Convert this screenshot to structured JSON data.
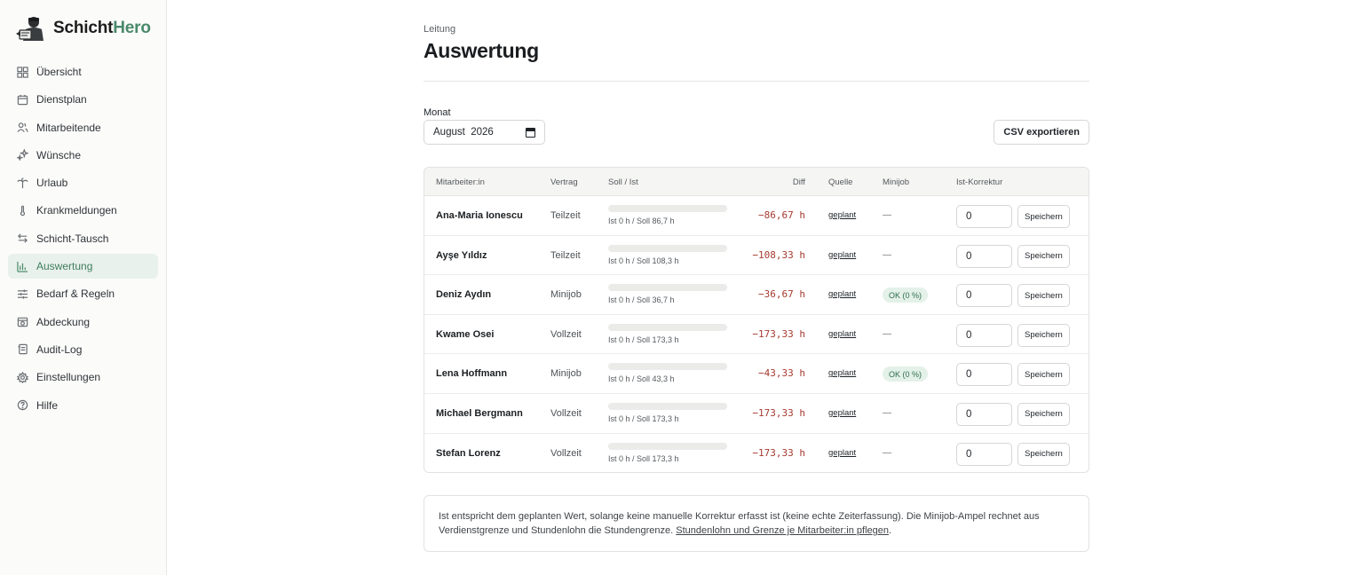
{
  "brand": {
    "name_main": "Schicht",
    "name_accent": "Hero",
    "accent_color": "#4a8a6a"
  },
  "sidebar": {
    "items": [
      {
        "label": "Übersicht",
        "icon": "grid-icon",
        "active": false
      },
      {
        "label": "Dienstplan",
        "icon": "calendar-icon",
        "active": false
      },
      {
        "label": "Mitarbeitende",
        "icon": "users-icon",
        "active": false
      },
      {
        "label": "Wünsche",
        "icon": "sparkle-icon",
        "active": false
      },
      {
        "label": "Urlaub",
        "icon": "palm-tree-icon",
        "active": false
      },
      {
        "label": "Krankmeldungen",
        "icon": "thermometer-icon",
        "active": false
      },
      {
        "label": "Schicht-Tausch",
        "icon": "swap-icon",
        "active": false
      },
      {
        "label": "Auswertung",
        "icon": "bar-chart-icon",
        "active": true
      },
      {
        "label": "Bedarf & Regeln",
        "icon": "sliders-icon",
        "active": false
      },
      {
        "label": "Abdeckung",
        "icon": "calendar-check-icon",
        "active": false
      },
      {
        "label": "Audit-Log",
        "icon": "log-icon",
        "active": false
      },
      {
        "label": "Einstellungen",
        "icon": "gear-icon",
        "active": false
      },
      {
        "label": "Hilfe",
        "icon": "help-icon",
        "active": false
      }
    ]
  },
  "header": {
    "breadcrumb": "Leitung",
    "title": "Auswertung"
  },
  "filters": {
    "month_label": "Monat",
    "month_value": "August  2026",
    "export_label": "CSV exportieren"
  },
  "table": {
    "columns": [
      "Mitarbeiter:in",
      "Vertrag",
      "Soll / Ist",
      "Diff",
      "Quelle",
      "Minijob",
      "Ist-Korrektur"
    ],
    "save_label": "Speichern",
    "rows": [
      {
        "name": "Ana-Maria Ionescu",
        "contract": "Teilzeit",
        "soll_ist": "Ist 0 h / Soll 86,7 h",
        "progress": 0,
        "diff": "−86,67 h",
        "source": "geplant",
        "minijob": "—",
        "correction": "0"
      },
      {
        "name": "Ayşe Yıldız",
        "contract": "Teilzeit",
        "soll_ist": "Ist 0 h / Soll 108,3 h",
        "progress": 0,
        "diff": "−108,33 h",
        "source": "geplant",
        "minijob": "—",
        "correction": "0"
      },
      {
        "name": "Deniz Aydın",
        "contract": "Minijob",
        "soll_ist": "Ist 0 h / Soll 36,7 h",
        "progress": 0,
        "diff": "−36,67 h",
        "source": "geplant",
        "minijob": "OK (0 %)",
        "correction": "0"
      },
      {
        "name": "Kwame Osei",
        "contract": "Vollzeit",
        "soll_ist": "Ist 0 h / Soll 173,3 h",
        "progress": 0,
        "diff": "−173,33 h",
        "source": "geplant",
        "minijob": "—",
        "correction": "0"
      },
      {
        "name": "Lena Hoffmann",
        "contract": "Minijob",
        "soll_ist": "Ist 0 h / Soll 43,3 h",
        "progress": 0,
        "diff": "−43,33 h",
        "source": "geplant",
        "minijob": "OK (0 %)",
        "correction": "0"
      },
      {
        "name": "Michael Bergmann",
        "contract": "Vollzeit",
        "soll_ist": "Ist 0 h / Soll 173,3 h",
        "progress": 0,
        "diff": "−173,33 h",
        "source": "geplant",
        "minijob": "—",
        "correction": "0"
      },
      {
        "name": "Stefan Lorenz",
        "contract": "Vollzeit",
        "soll_ist": "Ist 0 h / Soll 173,3 h",
        "progress": 0,
        "diff": "−173,33 h",
        "source": "geplant",
        "minijob": "—",
        "correction": "0"
      }
    ]
  },
  "note": {
    "text": "Ist entspricht dem geplanten Wert, solange keine manuelle Korrektur erfasst ist (keine echte Zeiterfassung). Die Minijob-Ampel rechnet aus Verdienstgrenze und Stundenlohn die Stundengrenze. ",
    "link": "Stundenlohn und Grenze je Mitarbeiter:in pflegen",
    "suffix": "."
  }
}
